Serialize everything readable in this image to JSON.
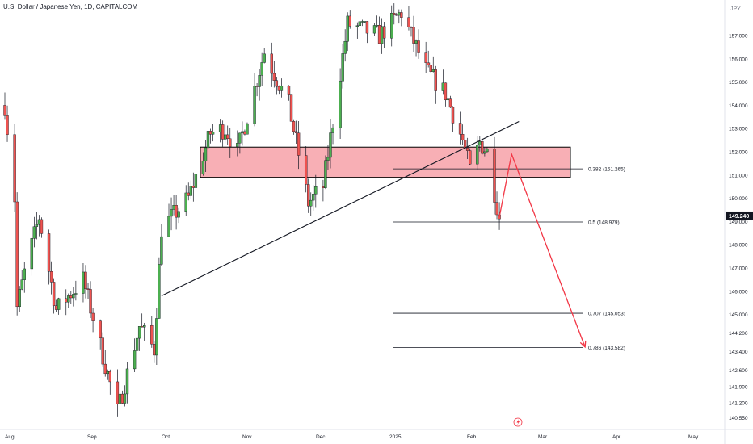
{
  "chart_data": {
    "type": "candlestick",
    "title": "U.S. Dollar / Japanese Yen, 1D, CAPITALCOM",
    "currency": "JPY",
    "current_price": "149.240",
    "y_range": [
      140.2,
      158.3
    ],
    "y_ticks": [
      "157.000",
      "156.000",
      "155.000",
      "154.000",
      "153.000",
      "152.000",
      "151.000",
      "150.000",
      "149.000",
      "148.000",
      "147.000",
      "146.000",
      "145.000",
      "144.200",
      "143.400",
      "142.600",
      "141.900",
      "141.200",
      "140.550"
    ],
    "x_tick_labels": [
      "Aug",
      "Sep",
      "Oct",
      "Nov",
      "Dec",
      "2025",
      "Feb",
      "Mar",
      "Apr",
      "May"
    ],
    "colors": {
      "up": "#26a69a",
      "up_fill": "#4caf50",
      "down": "#ef5350",
      "zone_fill": "#f7a1a8",
      "zone_border": "#000000",
      "projection": "#f23645",
      "trendline": "#131722"
    },
    "resistance_zone": {
      "top": 152.2,
      "bottom": 150.9
    },
    "fib_levels": [
      {
        "label": "0.382 (151.265)",
        "value": 151.265
      },
      {
        "label": "0.5 (148.979)",
        "value": 148.979
      },
      {
        "label": "0.707 (145.053)",
        "value": 145.053
      },
      {
        "label": "0.786 (143.582)",
        "value": 143.582
      }
    ],
    "trendline": {
      "from": {
        "date": "2024-10-04",
        "price": 145.8
      },
      "to": {
        "date": "2025-02-27",
        "price": 153.3
      }
    },
    "projection_path": [
      {
        "date": "2025-02-19",
        "price": 149.2
      },
      {
        "date": "2025-02-24",
        "price": 151.9
      },
      {
        "date": "2025-03-26",
        "price": 143.6
      }
    ],
    "series_ohlc_anchors": [
      {
        "date": "2024-08-01",
        "price": 154.0
      },
      {
        "date": "2024-08-05",
        "price": 150.0
      },
      {
        "date": "2024-08-06",
        "price": 145.3
      },
      {
        "date": "2024-08-09",
        "price": 146.8
      },
      {
        "date": "2024-08-15",
        "price": 149.2
      },
      {
        "date": "2024-08-22",
        "price": 145.2
      },
      {
        "date": "2024-09-02",
        "price": 146.5
      },
      {
        "date": "2024-09-16",
        "price": 140.8
      },
      {
        "date": "2024-09-25",
        "price": 144.5
      },
      {
        "date": "2024-10-01",
        "price": 143.5
      },
      {
        "date": "2024-10-04",
        "price": 148.7
      },
      {
        "date": "2024-10-15",
        "price": 150.0
      },
      {
        "date": "2024-10-24",
        "price": 152.8
      },
      {
        "date": "2024-10-30",
        "price": 153.0
      },
      {
        "date": "2024-11-04",
        "price": 152.0
      },
      {
        "date": "2024-11-15",
        "price": 156.3
      },
      {
        "date": "2024-11-25",
        "price": 154.0
      },
      {
        "date": "2024-12-03",
        "price": 149.8
      },
      {
        "date": "2024-12-09",
        "price": 150.5
      },
      {
        "date": "2024-12-19",
        "price": 157.5
      },
      {
        "date": "2025-01-01",
        "price": 157.0
      },
      {
        "date": "2025-01-10",
        "price": 158.0
      },
      {
        "date": "2025-01-20",
        "price": 155.5
      },
      {
        "date": "2025-01-28",
        "price": 154.5
      },
      {
        "date": "2025-02-04",
        "price": 152.5
      },
      {
        "date": "2025-02-07",
        "price": 151.2
      },
      {
        "date": "2025-02-11",
        "price": 152.4
      },
      {
        "date": "2025-02-14",
        "price": 152.0
      },
      {
        "date": "2025-02-18",
        "price": 149.7
      },
      {
        "date": "2025-02-19",
        "price": 149.2
      }
    ]
  }
}
